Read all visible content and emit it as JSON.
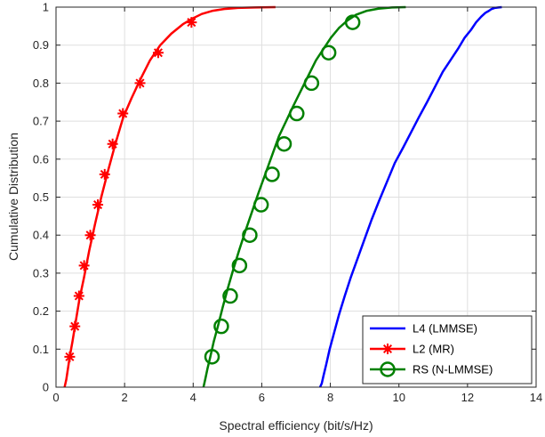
{
  "chart_data": {
    "type": "line",
    "title": "",
    "xlabel": "Spectral efficiency (bit/s/Hz)",
    "ylabel": "Cumulative Distribution",
    "xlim": [
      0,
      14
    ],
    "ylim": [
      0,
      1
    ],
    "xticks": [
      0,
      2,
      4,
      6,
      8,
      10,
      12,
      14
    ],
    "yticks": [
      0,
      0.1,
      0.2,
      0.3,
      0.4,
      0.5,
      0.6,
      0.7,
      0.8,
      0.9,
      1
    ],
    "grid": true,
    "legend_position": "bottom-right",
    "series": [
      {
        "name": "L4 (LMMSE)",
        "color": "#0000ff",
        "marker": "none",
        "x": [
          7.7,
          7.75,
          7.8,
          7.88,
          7.98,
          8.1,
          8.25,
          8.42,
          8.6,
          8.8,
          9.0,
          9.2,
          9.42,
          9.65,
          9.88,
          10.12,
          10.35,
          10.58,
          10.82,
          11.05,
          11.28,
          11.5,
          11.72,
          11.92,
          12.1,
          12.25,
          12.4,
          12.52,
          12.62,
          12.7,
          12.8,
          12.9,
          13.0
        ],
        "y": [
          0,
          0.01,
          0.03,
          0.06,
          0.1,
          0.14,
          0.19,
          0.24,
          0.29,
          0.34,
          0.39,
          0.44,
          0.49,
          0.54,
          0.59,
          0.63,
          0.67,
          0.71,
          0.75,
          0.79,
          0.83,
          0.86,
          0.89,
          0.92,
          0.94,
          0.96,
          0.975,
          0.985,
          0.99,
          0.995,
          0.998,
          0.999,
          1
        ]
      },
      {
        "name": "L2 (MR)",
        "color": "#ff0000",
        "marker": "asterisk",
        "x": [
          0.25,
          0.3,
          0.35,
          0.4,
          0.48,
          0.57,
          0.68,
          0.82,
          0.97,
          1.14,
          1.32,
          1.52,
          1.73,
          1.96,
          2.2,
          2.46,
          2.74,
          3.04,
          3.36,
          3.7,
          3.98,
          4.25,
          4.55,
          4.9,
          5.3,
          5.8,
          6.4
        ],
        "y": [
          0,
          0.02,
          0.05,
          0.08,
          0.12,
          0.17,
          0.23,
          0.29,
          0.36,
          0.43,
          0.5,
          0.57,
          0.64,
          0.71,
          0.76,
          0.81,
          0.86,
          0.9,
          0.93,
          0.955,
          0.97,
          0.982,
          0.99,
          0.995,
          0.998,
          0.999,
          1
        ],
        "marker_points": {
          "x": [
            0.4,
            0.55,
            0.67,
            0.82,
            1.0,
            1.22,
            1.42,
            1.65,
            1.95,
            2.45,
            2.98,
            3.95
          ],
          "y": [
            0.08,
            0.16,
            0.24,
            0.32,
            0.4,
            0.48,
            0.56,
            0.64,
            0.72,
            0.8,
            0.88,
            0.96
          ]
        }
      },
      {
        "name": "RS (N-LMMSE)",
        "color": "#008000",
        "marker": "circle",
        "x": [
          4.3,
          4.35,
          4.42,
          4.5,
          4.6,
          4.72,
          4.86,
          5.01,
          5.17,
          5.34,
          5.52,
          5.71,
          5.9,
          6.1,
          6.3,
          6.5,
          6.71,
          6.92,
          7.14,
          7.36,
          7.58,
          7.8,
          8.02,
          8.25,
          8.5,
          8.75,
          9.05,
          9.4,
          9.8,
          10.2
        ],
        "y": [
          0,
          0.02,
          0.05,
          0.08,
          0.12,
          0.16,
          0.21,
          0.26,
          0.31,
          0.36,
          0.41,
          0.46,
          0.51,
          0.56,
          0.61,
          0.66,
          0.7,
          0.74,
          0.78,
          0.82,
          0.86,
          0.89,
          0.92,
          0.945,
          0.965,
          0.98,
          0.99,
          0.996,
          0.999,
          1
        ],
        "marker_points": {
          "x": [
            4.55,
            4.82,
            5.08,
            5.35,
            5.65,
            5.98,
            6.3,
            6.65,
            7.02,
            7.45,
            7.95,
            8.65
          ],
          "y": [
            0.08,
            0.16,
            0.24,
            0.32,
            0.4,
            0.48,
            0.56,
            0.64,
            0.72,
            0.8,
            0.88,
            0.96
          ]
        }
      }
    ]
  }
}
